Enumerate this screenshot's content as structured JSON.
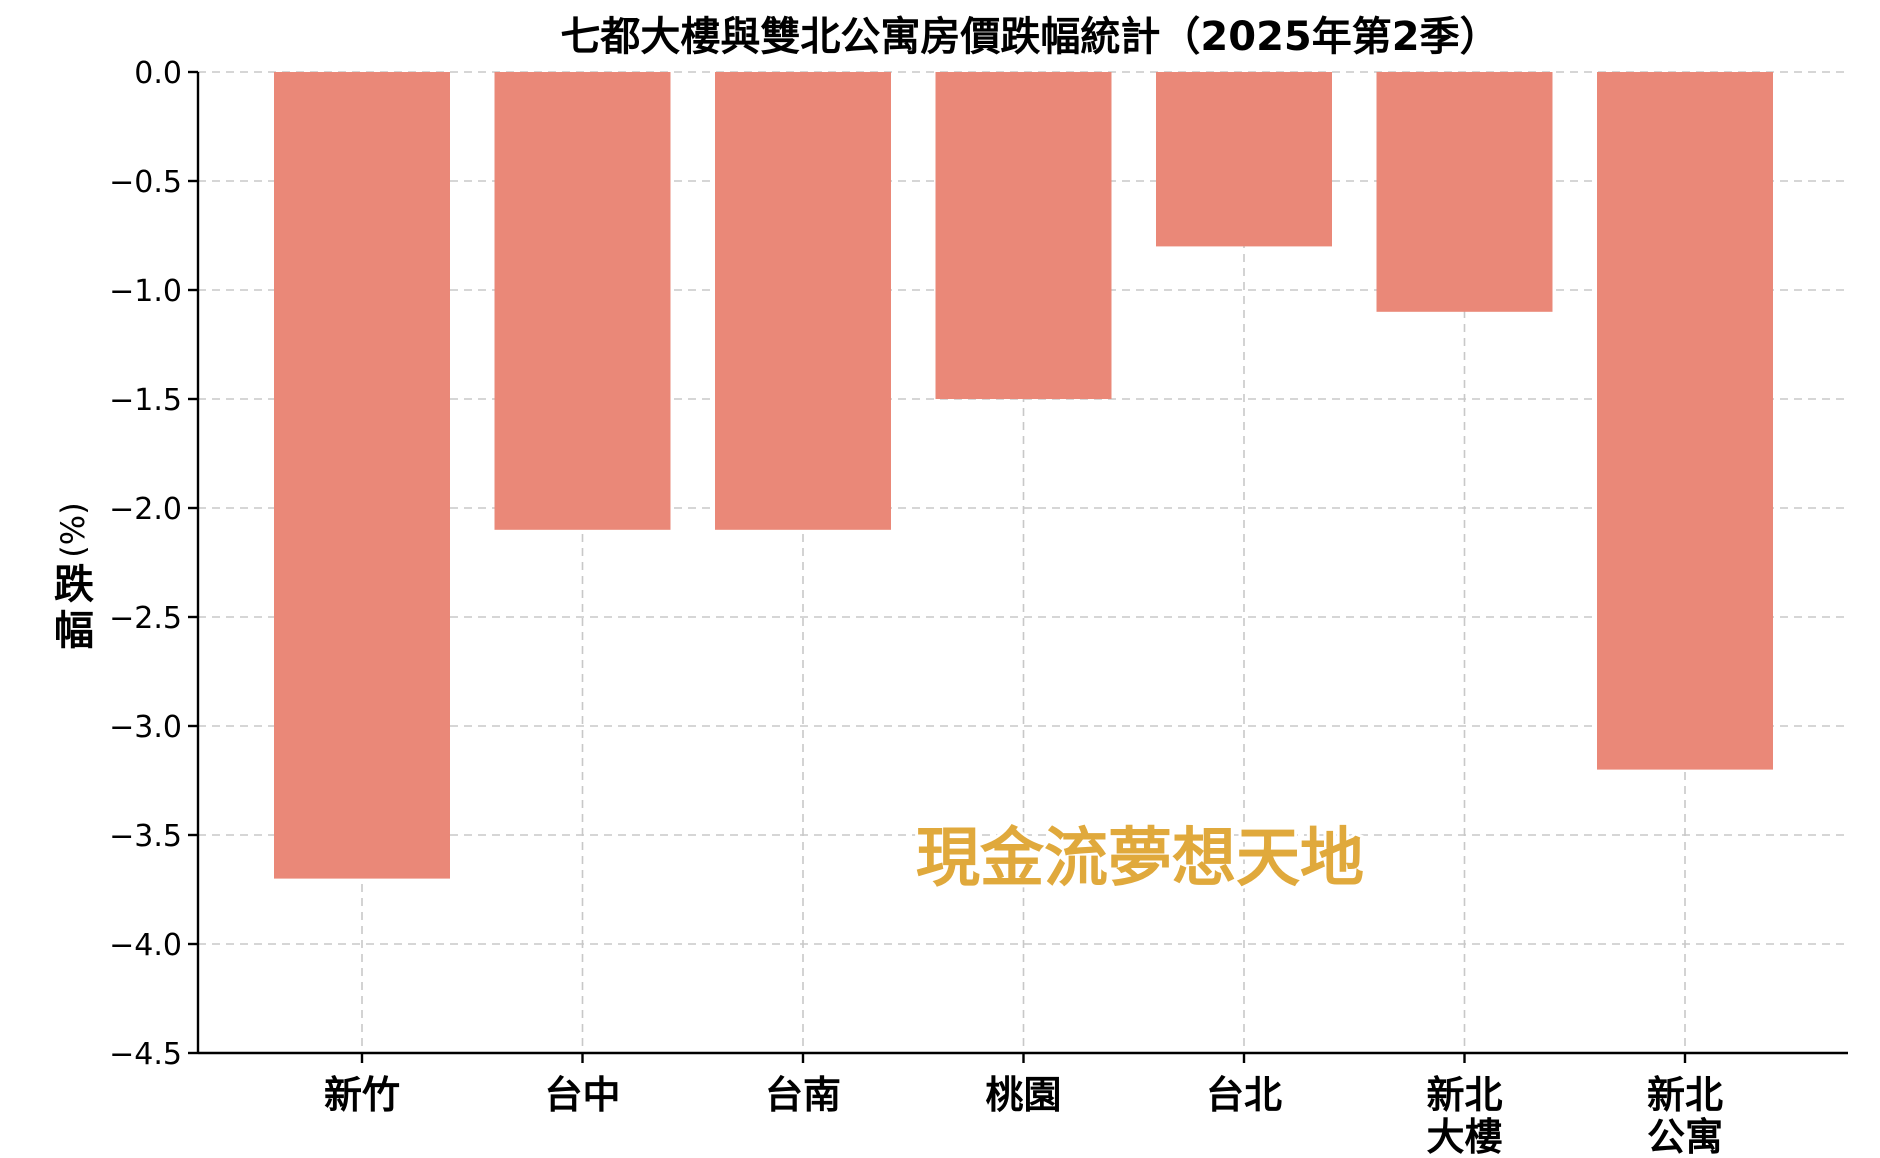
{
  "chart_data": {
    "type": "bar",
    "title": "七都大樓與雙北公寓房價跌幅統計（2025年第2季）",
    "ylabel": "跌幅",
    "ylabel_unit": "(%)",
    "categories": [
      [
        "新竹"
      ],
      [
        "台中"
      ],
      [
        "台南"
      ],
      [
        "桃園"
      ],
      [
        "台北"
      ],
      [
        "新北",
        "大樓"
      ],
      [
        "新北",
        "公寓"
      ]
    ],
    "values": [
      -3.7,
      -2.1,
      -2.1,
      -1.5,
      -0.8,
      -1.1,
      -3.2
    ],
    "ylim": [
      -4.5,
      0.0
    ],
    "yticks": [
      0.0,
      -0.5,
      -1.0,
      -1.5,
      -2.0,
      -2.5,
      -3.0,
      -3.5,
      -4.0,
      -4.5
    ],
    "ytick_labels": [
      "0.0",
      "−0.5",
      "−1.0",
      "−1.5",
      "−2.0",
      "−2.5",
      "−3.0",
      "−3.5",
      "−4.0",
      "−4.5"
    ],
    "grid": true,
    "bar_color": "#ea8878",
    "watermark": "現金流夢想天地",
    "watermark_color": "#e0a93c"
  }
}
